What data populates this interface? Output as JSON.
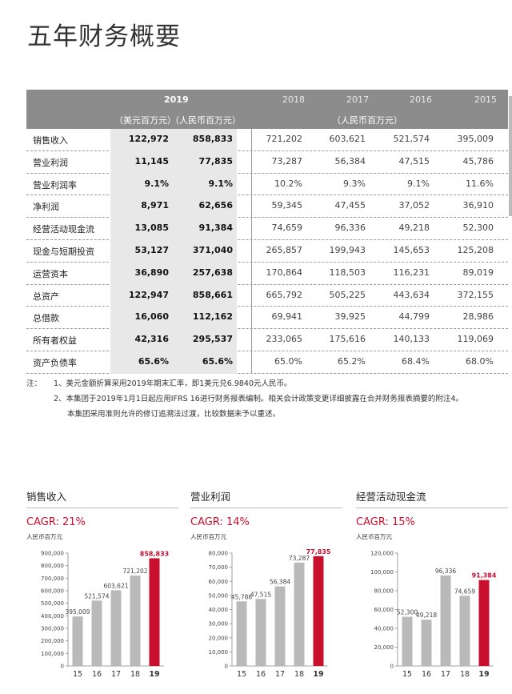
{
  "page_title": "五年财务概要",
  "table": {
    "year_2019": "2019",
    "years_other": [
      "2018",
      "2017",
      "2016",
      "2015"
    ],
    "unit_usd": "（美元百万元）",
    "unit_rmb_2019": "（人民币百万元）",
    "unit_rmb_other": "（人民币百万元）",
    "rows": [
      {
        "label": "销售收入",
        "usd": "122,972",
        "rmb": "858,833",
        "y2018": "721,202",
        "y2017": "603,621",
        "y2016": "521,574",
        "y2015": "395,009"
      },
      {
        "label": "营业利润",
        "usd": "11,145",
        "rmb": "77,835",
        "y2018": "73,287",
        "y2017": "56,384",
        "y2016": "47,515",
        "y2015": "45,786"
      },
      {
        "label": "营业利润率",
        "usd": "9.1%",
        "rmb": "9.1%",
        "y2018": "10.2%",
        "y2017": "9.3%",
        "y2016": "9.1%",
        "y2015": "11.6%"
      },
      {
        "label": "净利润",
        "usd": "8,971",
        "rmb": "62,656",
        "y2018": "59,345",
        "y2017": "47,455",
        "y2016": "37,052",
        "y2015": "36,910"
      },
      {
        "label": "经营活动现金流",
        "usd": "13,085",
        "rmb": "91,384",
        "y2018": "74,659",
        "y2017": "96,336",
        "y2016": "49,218",
        "y2015": "52,300"
      },
      {
        "label": "现金与短期投资",
        "usd": "53,127",
        "rmb": "371,040",
        "y2018": "265,857",
        "y2017": "199,943",
        "y2016": "145,653",
        "y2015": "125,208"
      },
      {
        "label": "运营资本",
        "usd": "36,890",
        "rmb": "257,638",
        "y2018": "170,864",
        "y2017": "118,503",
        "y2016": "116,231",
        "y2015": "89,019"
      },
      {
        "label": "总资产",
        "usd": "122,947",
        "rmb": "858,661",
        "y2018": "665,792",
        "y2017": "505,225",
        "y2016": "443,634",
        "y2015": "372,155"
      },
      {
        "label": "总借款",
        "usd": "16,060",
        "rmb": "112,162",
        "y2018": "69,941",
        "y2017": "39,925",
        "y2016": "44,799",
        "y2015": "28,986"
      },
      {
        "label": "所有者权益",
        "usd": "42,316",
        "rmb": "295,537",
        "y2018": "233,065",
        "y2017": "175,616",
        "y2016": "140,133",
        "y2015": "119,069"
      },
      {
        "label": "资产负债率",
        "usd": "65.6%",
        "rmb": "65.6%",
        "y2018": "65.0%",
        "y2017": "65.2%",
        "y2016": "68.4%",
        "y2015": "68.0%"
      }
    ]
  },
  "notes": {
    "prefix": "注：",
    "items": [
      "1、美元金额折算采用2019年期末汇率，即1美元兑6.9840元人民币。",
      "2、本集团于2019年1月1日起应用IFRS 16进行财务报表编制。相关会计政策变更详细披露在合并财务报表摘要的附注4。",
      "本集团采用准则允许的修订追溯法过渡，比较数据未予以重述。"
    ]
  },
  "chart_data": [
    {
      "type": "bar",
      "title": "销售收入",
      "cagr": "CAGR: 21%",
      "unit": "人民币百万元",
      "categories": [
        "15",
        "16",
        "17",
        "18",
        "19"
      ],
      "values": [
        395009,
        521574,
        603621,
        721202,
        858833
      ],
      "value_labels": [
        "395,009",
        "521,574",
        "603,621",
        "721,202",
        "858,833"
      ],
      "ylim": [
        0,
        900000
      ],
      "yticks": [
        0,
        100000,
        200000,
        300000,
        400000,
        500000,
        600000,
        700000,
        800000,
        900000
      ],
      "ytick_labels": [
        "0",
        "100,000",
        "200,000",
        "300,000",
        "400,000",
        "500,000",
        "600,000",
        "700,000",
        "800,000",
        "900,000"
      ],
      "bar_color": "#b9b9b9",
      "highlight_color": "#c8102e"
    },
    {
      "type": "bar",
      "title": "营业利润",
      "cagr": "CAGR: 14%",
      "unit": "人民币百万元",
      "categories": [
        "15",
        "16",
        "17",
        "18",
        "19"
      ],
      "values": [
        45786,
        47515,
        56384,
        73287,
        77835
      ],
      "value_labels": [
        "45,786",
        "47,515",
        "56,384",
        "73,287",
        "77,835"
      ],
      "ylim": [
        0,
        80000
      ],
      "yticks": [
        0,
        10000,
        20000,
        30000,
        40000,
        50000,
        60000,
        70000,
        80000
      ],
      "ytick_labels": [
        "0",
        "10,000",
        "20,000",
        "30,000",
        "40,000",
        "50,000",
        "60,000",
        "70,000",
        "80,000"
      ],
      "bar_color": "#b9b9b9",
      "highlight_color": "#c8102e"
    },
    {
      "type": "bar",
      "title": "经营活动现金流",
      "cagr": "CAGR: 15%",
      "unit": "人民币百万元",
      "categories": [
        "15",
        "16",
        "17",
        "18",
        "19"
      ],
      "values": [
        52300,
        49218,
        96336,
        74659,
        91384
      ],
      "value_labels": [
        "52,300",
        "49,218",
        "96,336",
        "74,659",
        "91,384"
      ],
      "ylim": [
        0,
        120000
      ],
      "yticks": [
        0,
        20000,
        40000,
        60000,
        80000,
        100000,
        120000
      ],
      "ytick_labels": [
        "0",
        "20,000",
        "40,000",
        "60,000",
        "80,000",
        "100,000",
        "120,000"
      ],
      "bar_color": "#b9b9b9",
      "highlight_color": "#c8102e"
    }
  ]
}
